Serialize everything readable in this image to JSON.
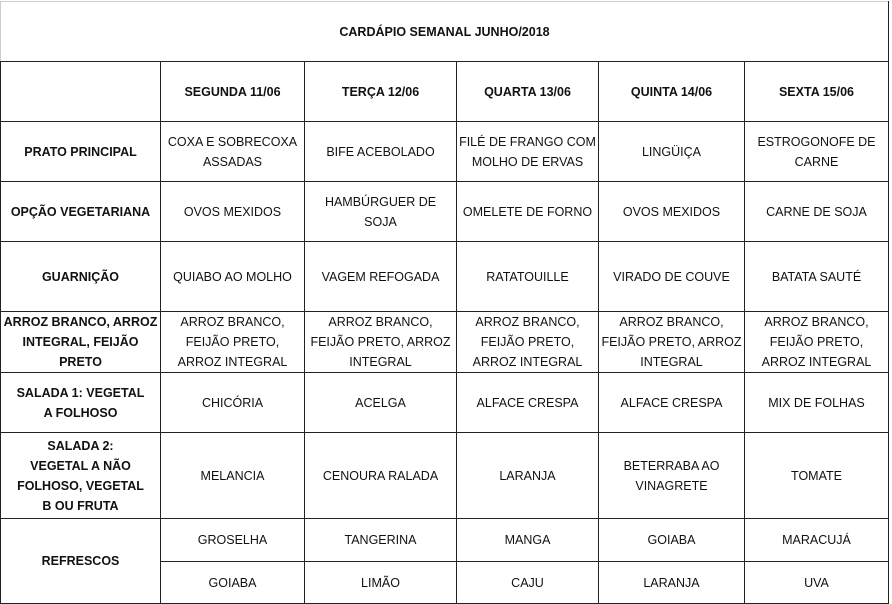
{
  "title": "CARDÁPIO SEMANAL JUNHO/2018",
  "days": [
    "SEGUNDA 11/06",
    "TERÇA 12/06",
    "QUARTA 13/06",
    "QUINTA 14/06",
    "SEXTA 15/06"
  ],
  "rows": [
    {
      "label": "PRATO PRINCIPAL",
      "cells": [
        "COXA E SOBRECOXA ASSADAS",
        "BIFE ACEBOLADO",
        "FILÉ DE FRANGO COM MOLHO DE ERVAS",
        "LINGÜIÇA",
        "ESTROGONOFE DE CARNE"
      ]
    },
    {
      "label": "OPÇÃO VEGETARIANA",
      "cells": [
        "OVOS MEXIDOS",
        "HAMBÚRGUER DE SOJA",
        "OMELETE DE FORNO",
        "OVOS MEXIDOS",
        "CARNE DE SOJA"
      ]
    },
    {
      "label": "GUARNIÇÃO",
      "cells": [
        "QUIABO AO MOLHO",
        "VAGEM REFOGADA",
        "RATATOUILLE",
        "VIRADO DE COUVE",
        "BATATA SAUTÉ"
      ]
    },
    {
      "label": "ARROZ BRANCO, ARROZ INTEGRAL, FEIJÃO PRETO",
      "cells": [
        "ARROZ BRANCO, FEIJÃO PRETO, ARROZ INTEGRAL",
        "ARROZ BRANCO, FEIJÃO PRETO, ARROZ INTEGRAL",
        "ARROZ BRANCO, FEIJÃO PRETO, ARROZ INTEGRAL",
        "ARROZ BRANCO, FEIJÃO PRETO, ARROZ INTEGRAL",
        "ARROZ BRANCO, FEIJÃO PRETO, ARROZ INTEGRAL"
      ]
    },
    {
      "label": "SALADA 1: VEGETAL A FOLHOSO",
      "cells": [
        "CHICÓRIA",
        "ACELGA",
        "ALFACE CRESPA",
        "ALFACE CRESPA",
        "MIX DE FOLHAS"
      ]
    },
    {
      "label": "SALADA 2: VEGETAL A NÃO FOLHOSO, VEGETAL B OU FRUTA",
      "cells": [
        "MELANCIA",
        "CENOURA RALADA",
        "LARANJA",
        "BETERRABA AO VINAGRETE",
        "TOMATE"
      ]
    }
  ],
  "refrescos": {
    "label": "REFRESCOS",
    "row1": [
      "GROSELHA",
      "TANGERINA",
      "MANGA",
      "GOIABA",
      "MARACUJÁ"
    ],
    "row2": [
      "GOIABA",
      "LIMÃO",
      "CAJU",
      "LARANJA",
      "UVA"
    ]
  }
}
